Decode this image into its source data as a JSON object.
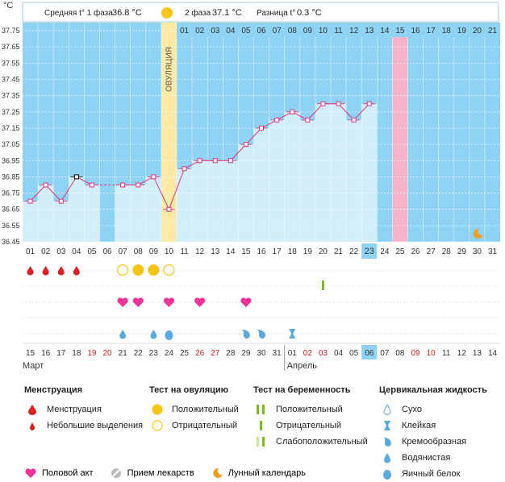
{
  "header": {
    "unit": "°C",
    "phase1_label": "Средняя t° 1 фаза",
    "phase1_value": "36.8 °C",
    "phase2_label": "2 фаза",
    "phase2_value": "37.1 °C",
    "diff_label": "Разница t°",
    "diff_value": "0.3 °C"
  },
  "ovulation_label": "ОВУЛЯЦИЯ",
  "colors": {
    "plot_bg": "#8fd3f4",
    "bar_fill": "#d3eefb",
    "ovulation": "#fbe9a6",
    "period_day": "#f7b3c9",
    "line": "#e0337a",
    "today": "#8fd3f4",
    "weekend_text": "#d22222"
  },
  "chart_data": {
    "type": "line",
    "cycle_days": [
      "01",
      "02",
      "03",
      "04",
      "05",
      "06",
      "07",
      "08",
      "09",
      "10",
      "11",
      "12",
      "13",
      "14",
      "15",
      "16",
      "17",
      "18",
      "19",
      "20",
      "21",
      "22",
      "23",
      "24",
      "25",
      "26",
      "27",
      "28",
      "29",
      "30",
      "31"
    ],
    "post_ovulation_days": [
      "01",
      "02",
      "03",
      "04",
      "05",
      "06",
      "07",
      "08",
      "09",
      "10",
      "11",
      "12",
      "13",
      "14",
      "15",
      "16",
      "17",
      "18",
      "19",
      "20",
      "21"
    ],
    "dates": [
      "15",
      "16",
      "17",
      "18",
      "19",
      "20",
      "21",
      "22",
      "23",
      "24",
      "25",
      "26",
      "27",
      "28",
      "29",
      "30",
      "31",
      "01",
      "02",
      "03",
      "04",
      "05",
      "06",
      "07",
      "08",
      "09",
      "10",
      "11",
      "12",
      "13",
      "14"
    ],
    "weekend_dates": [
      "19",
      "20",
      "26",
      "27",
      "02",
      "03",
      "09",
      "10"
    ],
    "months": [
      "Март",
      "Апрель"
    ],
    "temperatures": [
      36.7,
      36.8,
      36.7,
      36.85,
      36.8,
      null,
      36.8,
      36.8,
      36.85,
      36.65,
      36.9,
      36.95,
      36.95,
      36.95,
      37.05,
      37.15,
      37.2,
      37.25,
      37.2,
      37.3,
      37.3,
      37.2,
      37.3,
      null,
      null,
      null,
      null,
      null,
      null,
      null,
      null
    ],
    "marked_point_day": "04",
    "ovulation_day": "10",
    "period_day": "25",
    "today_day": "23",
    "moon_day": "30",
    "y_ticks": [
      "37.75",
      "37.65",
      "37.55",
      "37.45",
      "37.35",
      "37.25",
      "37.15",
      "37.05",
      "36.95",
      "36.85",
      "36.75",
      "36.65",
      "36.55",
      "36.45"
    ],
    "ylim": [
      36.45,
      37.8
    ],
    "markers": {
      "menstruation": [
        "01",
        "02",
        "03",
        "04"
      ],
      "ovulation_test_negative": [
        "07",
        "10"
      ],
      "ovulation_test_positive": [
        "08",
        "09"
      ],
      "pregnancy_test_weak": [
        "20"
      ],
      "intercourse": [
        "07",
        "08",
        "10",
        "12",
        "15"
      ],
      "fluid_watery": [
        "07",
        "09"
      ],
      "fluid_egg_white": [
        "10"
      ],
      "fluid_creamy": [
        "15",
        "16"
      ],
      "fluid_sticky": [
        "18"
      ]
    }
  },
  "legend": {
    "menstruation": {
      "title": "Менструация",
      "items": [
        "Менструация",
        "Небольшие выделения"
      ]
    },
    "ovulation_test": {
      "title": "Тест на овуляцию",
      "items": [
        "Положительный",
        "Отрицательный"
      ]
    },
    "pregnancy_test": {
      "title": "Тест на беременность",
      "items": [
        "Положительный",
        "Отрицательный",
        "Слабоположительный"
      ]
    },
    "cervical": {
      "title": "Цервикальная жидкость",
      "items": [
        "Сухо",
        "Клейкая",
        "Кремообразная",
        "Водянистая",
        "Яичный белок"
      ]
    },
    "bottom": [
      "Половой акт",
      "Прием лекарств",
      "Лунный календарь"
    ]
  }
}
